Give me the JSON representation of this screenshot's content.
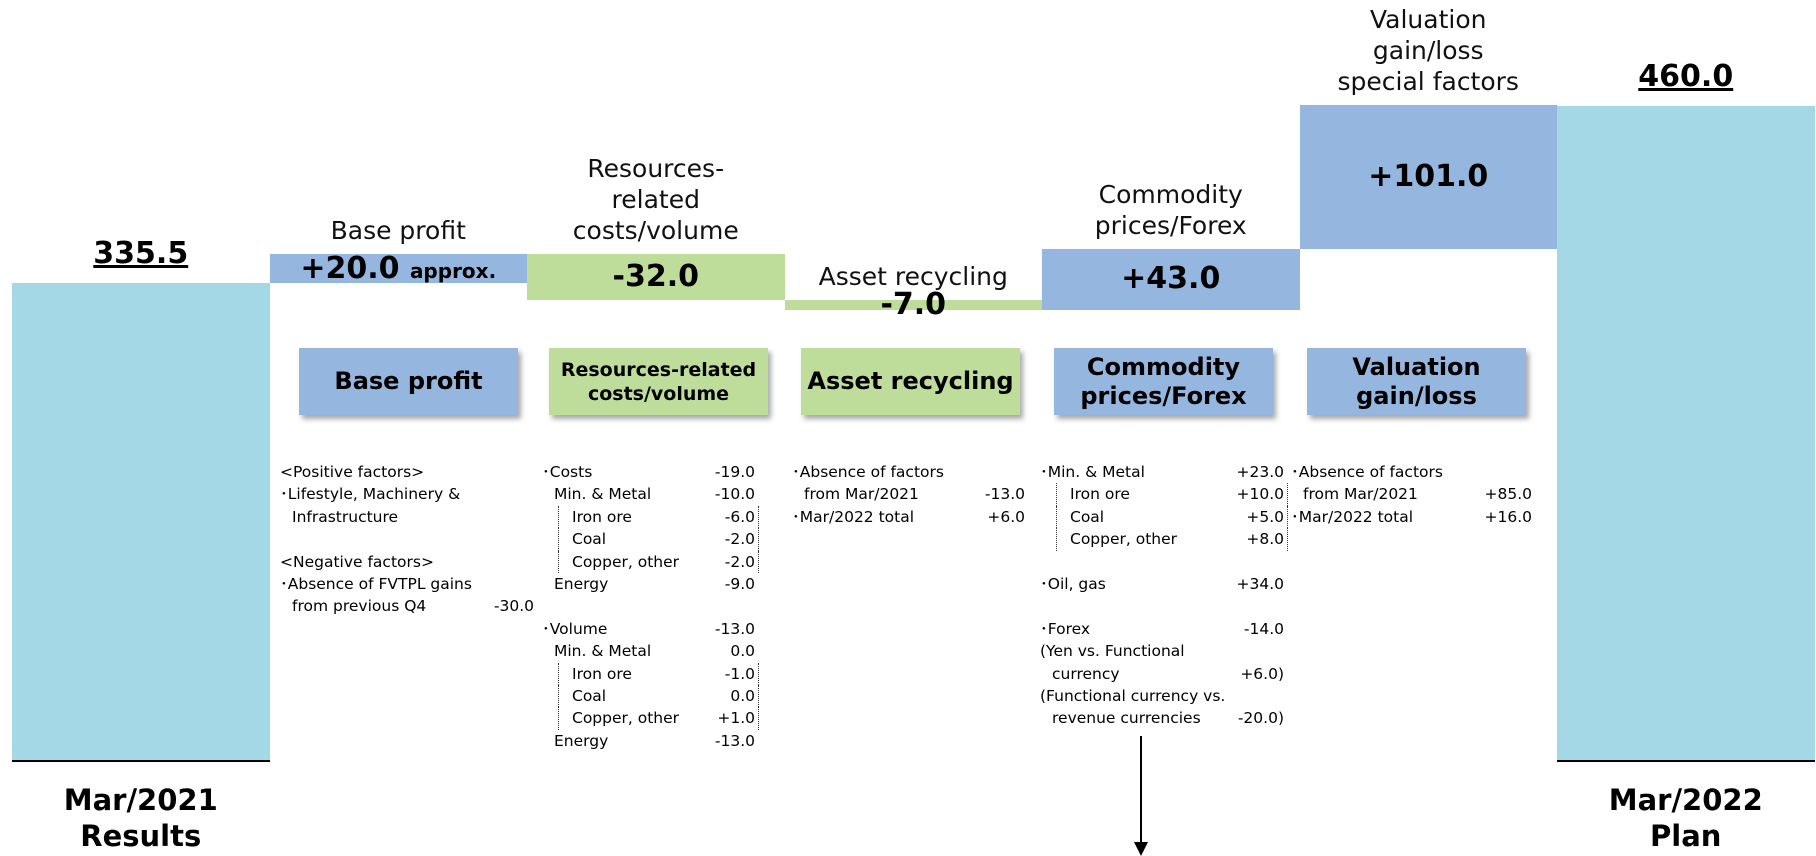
{
  "chart_data": {
    "type": "waterfall",
    "categories": [
      "Mar/2021\nResults",
      "Base profit",
      "Resources-\nrelated\ncosts/volume",
      "Asset recycling",
      "Commodity\nprices/Forex",
      "Valuation\ngain/loss\nspecial factors",
      "Mar/2022\nPlan"
    ],
    "values": [
      335.5,
      20.0,
      -32.0,
      -7.0,
      43.0,
      101.0,
      460.0
    ],
    "value_labels": [
      "335.5",
      "+20.0",
      "-32.0",
      "-7.0",
      "+43.0",
      "+101.0",
      "460.0"
    ],
    "annotations": [
      "approx."
    ],
    "colors": {
      "total": "#a5d8e6",
      "increase": "#95b6df",
      "decrease": "#bedd9a"
    }
  },
  "panels": [
    {
      "title": "Base profit",
      "rows": [
        [
          "<Positive factors>"
        ],
        [
          "･Lifestyle, Machinery &"
        ],
        [
          "Infrastructure"
        ],
        [
          "<Negative factors>"
        ],
        [
          "･Absence of FVTPL gains"
        ],
        [
          "from previous Q4",
          "-30.0"
        ]
      ]
    },
    {
      "title": "Resources-related\ncosts/volume",
      "rows": [
        [
          "･Costs",
          "-19.0"
        ],
        [
          "Min. & Metal",
          "-10.0"
        ],
        [
          "Iron ore",
          "-6.0"
        ],
        [
          "Coal",
          "-2.0"
        ],
        [
          "Copper, other",
          "-2.0"
        ],
        [
          "Energy",
          "-9.0"
        ],
        [
          "･Volume",
          "-13.0"
        ],
        [
          "Min. & Metal",
          "0.0"
        ],
        [
          "Iron ore",
          "-1.0"
        ],
        [
          "Coal",
          "0.0"
        ],
        [
          "Copper, other",
          "+1.0"
        ],
        [
          "Energy",
          "-13.0"
        ]
      ]
    },
    {
      "title": "Asset recycling",
      "rows": [
        [
          "･Absence of factors"
        ],
        [
          "from Mar/2021",
          "-13.0"
        ],
        [
          "･Mar/2022 total",
          "+6.0"
        ]
      ]
    },
    {
      "title": "Commodity\nprices/Forex",
      "rows": [
        [
          "･Min. & Metal",
          "+23.0"
        ],
        [
          "Iron ore",
          "+10.0"
        ],
        [
          "Coal",
          "+5.0"
        ],
        [
          "Copper, other",
          "+8.0"
        ],
        [
          "･Oil, gas",
          "+34.0"
        ],
        [
          "･Forex",
          "-14.0"
        ],
        [
          "(Yen vs. Functional"
        ],
        [
          "currency",
          "+6.0)"
        ],
        [
          "(Functional currency vs."
        ],
        [
          "revenue currencies",
          "-20.0)"
        ]
      ]
    },
    {
      "title": "Valuation\ngain/loss",
      "rows": [
        [
          "･Absence of factors"
        ],
        [
          "from Mar/2021",
          "+85.0"
        ],
        [
          "･Mar/2022 total",
          "+16.0"
        ]
      ]
    }
  ]
}
